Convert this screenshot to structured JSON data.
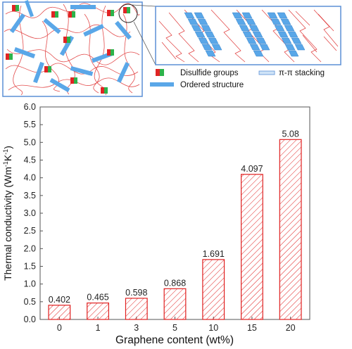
{
  "schematic": {
    "legend": {
      "disulfide": "Disulfide groups",
      "pi_stacking": "π-π stacking",
      "ordered": "Ordered structure"
    },
    "colors": {
      "chain": "#e03a3a",
      "platelet": "#5aa7e8",
      "frame": "#5b8fd6",
      "disulfide_red": "#e02424",
      "disulfide_green": "#2db34a"
    }
  },
  "chart_data": {
    "type": "bar",
    "categories": [
      "0",
      "1",
      "3",
      "5",
      "10",
      "15",
      "20"
    ],
    "values": [
      0.402,
      0.465,
      0.598,
      0.868,
      1.691,
      4.097,
      5.08
    ],
    "value_labels": [
      "0.402",
      "0.465",
      "0.598",
      "0.868",
      "1.691",
      "4.097",
      "5.08"
    ],
    "xlabel": "Graphene content (wt%)",
    "ylabel_main": "Thermal conductivity (Wm",
    "ylabel_sup1": "-1",
    "ylabel_mid": "K",
    "ylabel_sup2": "-1",
    "ylabel_end": ")",
    "ylim": [
      0,
      6.0
    ],
    "yticks": [
      "0.0",
      "0.5",
      "1.0",
      "1.5",
      "2.0",
      "2.5",
      "3.0",
      "3.5",
      "4.0",
      "4.5",
      "5.0",
      "5.5",
      "6.0"
    ],
    "bar_color": "#e02020",
    "hatch": "diagonal",
    "grid": false,
    "legend": "none"
  }
}
